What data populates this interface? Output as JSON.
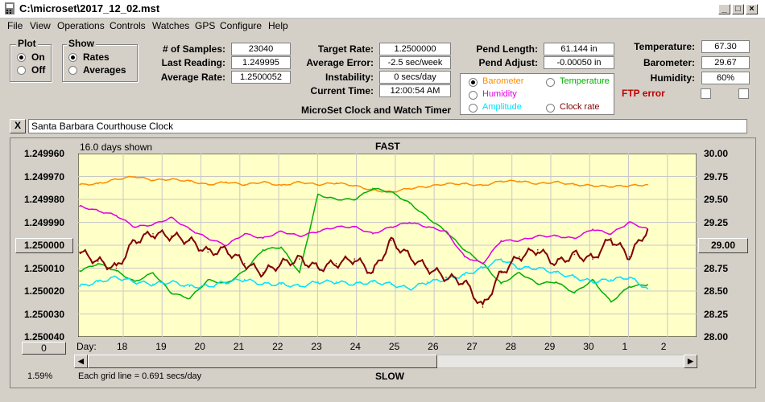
{
  "window": {
    "title": "C:\\microset\\2017_12_02.mst"
  },
  "menu": [
    "File",
    "View",
    "Operations",
    "Controls",
    "Watches",
    "GPS",
    "Configure",
    "Help"
  ],
  "plot_group": {
    "label": "Plot",
    "on": "On",
    "off": "Off",
    "selected": "On"
  },
  "show_group": {
    "label": "Show",
    "rates": "Rates",
    "averages": "Averages",
    "selected": "Rates"
  },
  "stats": {
    "samples_label": "# of Samples:",
    "samples": "23040",
    "last_reading_label": "Last Reading:",
    "last_reading": "1.249995",
    "average_rate_label": "Average Rate:",
    "average_rate": "1.2500052"
  },
  "targets": {
    "target_rate_label": "Target Rate:",
    "target_rate": "1.2500000",
    "average_error_label": "Average Error:",
    "average_error": "-2.5 sec/week",
    "instability_label": "Instability:",
    "instability": "0 secs/day",
    "current_time_label": "Current Time:",
    "current_time": "12:00:54 AM"
  },
  "pendulum": {
    "length_label": "Pend Length:",
    "length": "61.144 in",
    "adjust_label": "Pend Adjust:",
    "adjust": "-0.00050 in"
  },
  "environment": {
    "temperature_label": "Temperature:",
    "temperature": "67.30",
    "barometer_label": "Barometer:",
    "barometer": "29.67",
    "humidity_label": "Humidity:",
    "humidity": "60%",
    "ftp_error": "FTP error"
  },
  "app_caption": "MicroSet Clock and Watch Timer",
  "overlay_options": {
    "barometer": "Barometer",
    "temperature": "Temperature",
    "humidity": "Humidity",
    "amplitude": "Amplitude",
    "clock_rate": "Clock rate",
    "selected": "Barometer"
  },
  "colors": {
    "barometer": "#ff8c00",
    "temperature": "#00b000",
    "humidity": "#e000e0",
    "amplitude": "#00e0ff",
    "clock_rate": "#800000",
    "plot_bg": "#ffffc8",
    "ftp_error": "#c00000"
  },
  "watch": {
    "close_label": "X",
    "name": "Santa Barbara Courthouse Clock"
  },
  "plot": {
    "days_shown": "16.0 days shown",
    "top_label": "FAST",
    "bottom_label": "SLOW",
    "day_label": "Day:",
    "grid_note": "Each grid line = 0.691 secs/day",
    "percent": "1.59%",
    "left_button": "1.250000",
    "right_button": "29.00",
    "zero_button": "0"
  },
  "chart_data": {
    "type": "line",
    "x_unit": "days",
    "x_ticks": [
      "18",
      "19",
      "20",
      "21",
      "22",
      "23",
      "24",
      "25",
      "26",
      "27",
      "28",
      "29",
      "30",
      "1",
      "2"
    ],
    "left_axis": {
      "ticks": [
        "1.249960",
        "1.249970",
        "1.249980",
        "1.249990",
        "1.250000",
        "1.250010",
        "1.250020",
        "1.250030",
        "1.250040"
      ],
      "range": [
        1.24996,
        1.25004
      ],
      "inverted": true
    },
    "right_axis": {
      "ticks": [
        "30.00",
        "29.75",
        "29.50",
        "29.25",
        "29.00",
        "28.75",
        "28.50",
        "28.25",
        "28.00"
      ],
      "range": [
        28.0,
        30.0
      ]
    },
    "series": [
      {
        "name": "Barometer",
        "axis": "right",
        "color": "#ff8c00",
        "x": [
          0,
          0.5,
          1,
          1.5,
          2,
          2.5,
          3,
          3.5,
          4,
          4.5,
          5,
          5.5,
          6,
          6.5,
          7,
          7.5,
          8,
          8.5,
          9,
          9.5,
          10,
          10.5,
          11,
          11.5,
          12,
          12.5,
          13,
          13.5,
          14,
          14.5,
          15,
          15.5
        ],
        "y": [
          29.66,
          29.67,
          29.72,
          29.75,
          29.71,
          29.72,
          29.7,
          29.66,
          29.69,
          29.66,
          29.69,
          29.65,
          29.69,
          29.66,
          29.68,
          29.65,
          29.6,
          29.58,
          29.62,
          29.64,
          29.67,
          29.67,
          29.65,
          29.7,
          29.7,
          29.67,
          29.69,
          29.66,
          29.65,
          29.64,
          29.65,
          29.66
        ]
      },
      {
        "name": "Temperature",
        "axis": "right",
        "color": "#00b000",
        "x": [
          0,
          0.5,
          1,
          1.5,
          2,
          2.5,
          3,
          3.5,
          4,
          4.5,
          5,
          5.5,
          6,
          6.5,
          7,
          7.5,
          8,
          8.5,
          9,
          9.5,
          10,
          10.5,
          11,
          11.5,
          12,
          12.5,
          13,
          13.5,
          14,
          14.5,
          15,
          15.5
        ],
        "y": [
          28.72,
          28.8,
          28.72,
          28.6,
          28.7,
          28.48,
          28.42,
          28.62,
          28.58,
          28.72,
          28.95,
          28.98,
          28.7,
          29.55,
          29.5,
          29.5,
          29.62,
          29.58,
          29.46,
          29.3,
          29.15,
          28.95,
          28.8,
          28.58,
          28.7,
          28.58,
          28.6,
          28.48,
          28.62,
          28.38,
          28.55,
          28.57
        ]
      },
      {
        "name": "Humidity",
        "axis": "left",
        "color": "#e000e0",
        "x": [
          0,
          0.5,
          1,
          1.5,
          2,
          2.5,
          3,
          3.5,
          4,
          4.5,
          5,
          5.5,
          6,
          6.5,
          7,
          7.5,
          8,
          8.5,
          9,
          9.5,
          10,
          10.5,
          11,
          11.5,
          12,
          12.5,
          13,
          13.5,
          14,
          14.5,
          15,
          15.5
        ],
        "y": [
          1.249983,
          1.249985,
          1.249987,
          1.249992,
          1.249991,
          1.249988,
          1.249993,
          1.249997,
          1.25,
          1.249995,
          1.249997,
          1.249994,
          1.249996,
          1.249994,
          1.249992,
          1.249992,
          1.249995,
          1.249992,
          1.24999,
          1.249992,
          1.249994,
          1.250005,
          1.250008,
          1.249998,
          1.249998,
          1.249996,
          1.249996,
          1.249997,
          1.249993,
          1.249995,
          1.24999,
          1.249993
        ]
      },
      {
        "name": "Amplitude",
        "axis": "left",
        "color": "#00e0ff",
        "x": [
          0,
          0.5,
          1,
          1.5,
          2,
          2.5,
          3,
          3.5,
          4,
          4.5,
          5,
          5.5,
          6,
          6.5,
          7,
          7.5,
          8,
          8.5,
          9,
          9.5,
          10,
          10.5,
          11,
          11.5,
          12,
          12.5,
          13,
          13.5,
          14,
          14.5,
          15,
          15.5
        ],
        "y": [
          1.250018,
          1.250016,
          1.250014,
          1.250016,
          1.250017,
          1.250016,
          1.250018,
          1.250018,
          1.250016,
          1.250015,
          1.250017,
          1.250017,
          1.250018,
          1.250016,
          1.250016,
          1.250017,
          1.250016,
          1.250017,
          1.250019,
          1.250016,
          1.250015,
          1.250013,
          1.25001,
          1.250006,
          1.25001,
          1.25001,
          1.250012,
          1.250014,
          1.250016,
          1.250015,
          1.250014,
          1.250019
        ]
      },
      {
        "name": "Clock rate",
        "axis": "left",
        "color": "#800000",
        "x": [
          0,
          0.5,
          1,
          1.5,
          2,
          2.5,
          3,
          3.5,
          4,
          4.5,
          5,
          5.5,
          6,
          6.5,
          7,
          7.5,
          8,
          8.5,
          9,
          9.5,
          10,
          10.5,
          11,
          11.5,
          12,
          12.5,
          13,
          13.5,
          14,
          14.5,
          15,
          15.5
        ],
        "y": [
          1.250003,
          1.250007,
          1.25001,
          1.249998,
          1.249995,
          1.249996,
          1.249998,
          1.250003,
          1.250002,
          1.250008,
          1.250012,
          1.250008,
          1.250006,
          1.25001,
          1.250008,
          1.250006,
          1.250012,
          1.249998,
          1.250005,
          1.25001,
          1.250014,
          1.250016,
          1.250027,
          1.250012,
          1.250005,
          1.250002,
          1.250008,
          1.250004,
          1.250006,
          1.249997,
          1.250005,
          1.249993
        ]
      }
    ]
  }
}
